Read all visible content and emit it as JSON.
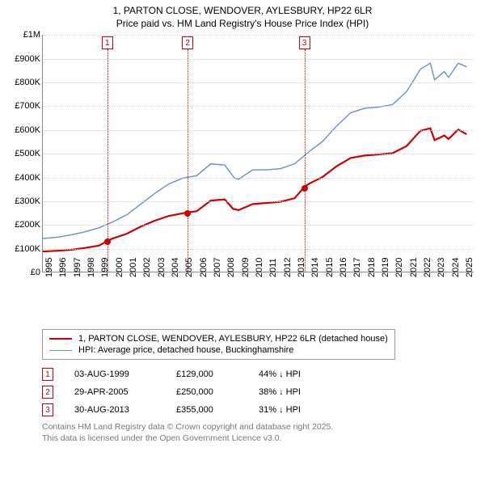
{
  "title_line1": "1, PARTON CLOSE, WENDOVER, AYLESBURY, HP22 6LR",
  "title_line2": "Price paid vs. HM Land Registry's House Price Index (HPI)",
  "colors": {
    "series_paid": "#cc0000",
    "series_hpi": "#6a8fc5",
    "marker_border": "#cc0000",
    "grid": "#d0d0d0",
    "axis": "#888888",
    "text": "#000000",
    "footer": "#777777",
    "bg": "#ffffff"
  },
  "chart": {
    "type": "line",
    "ylim": [
      0,
      1000000
    ],
    "ytick_step": 100000,
    "ylabels": [
      "£0",
      "£100K",
      "£200K",
      "£300K",
      "£400K",
      "£500K",
      "£600K",
      "£700K",
      "£800K",
      "£900K",
      "£1M"
    ],
    "xlim": [
      1995,
      2025.8
    ],
    "xticks": [
      1995,
      1996,
      1997,
      1998,
      1999,
      2000,
      2001,
      2002,
      2003,
      2004,
      2005,
      2006,
      2007,
      2008,
      2009,
      2010,
      2011,
      2012,
      2013,
      2014,
      2015,
      2016,
      2017,
      2018,
      2019,
      2020,
      2021,
      2022,
      2023,
      2024,
      2025
    ],
    "line_width_paid": 2.2,
    "line_width_hpi": 1.4,
    "series_paid": [
      [
        1995,
        85000
      ],
      [
        1996,
        88000
      ],
      [
        1997,
        92000
      ],
      [
        1998,
        100000
      ],
      [
        1999,
        110000
      ],
      [
        1999.6,
        129000
      ],
      [
        2000,
        140000
      ],
      [
        2001,
        160000
      ],
      [
        2002,
        190000
      ],
      [
        2003,
        215000
      ],
      [
        2004,
        235000
      ],
      [
        2005.33,
        250000
      ],
      [
        2006,
        255000
      ],
      [
        2007,
        300000
      ],
      [
        2008,
        305000
      ],
      [
        2008.6,
        265000
      ],
      [
        2009,
        260000
      ],
      [
        2010,
        285000
      ],
      [
        2011,
        290000
      ],
      [
        2012,
        295000
      ],
      [
        2013,
        310000
      ],
      [
        2013.66,
        355000
      ],
      [
        2014,
        370000
      ],
      [
        2015,
        400000
      ],
      [
        2016,
        445000
      ],
      [
        2017,
        480000
      ],
      [
        2018,
        490000
      ],
      [
        2019,
        495000
      ],
      [
        2020,
        500000
      ],
      [
        2021,
        530000
      ],
      [
        2022,
        595000
      ],
      [
        2022.7,
        605000
      ],
      [
        2023,
        555000
      ],
      [
        2023.7,
        575000
      ],
      [
        2024,
        560000
      ],
      [
        2024.7,
        600000
      ],
      [
        2025.3,
        580000
      ]
    ],
    "series_hpi": [
      [
        1995,
        140000
      ],
      [
        1996,
        145000
      ],
      [
        1997,
        155000
      ],
      [
        1998,
        168000
      ],
      [
        1999,
        185000
      ],
      [
        2000,
        210000
      ],
      [
        2001,
        240000
      ],
      [
        2002,
        285000
      ],
      [
        2003,
        330000
      ],
      [
        2004,
        370000
      ],
      [
        2005,
        395000
      ],
      [
        2006,
        405000
      ],
      [
        2007,
        455000
      ],
      [
        2008,
        450000
      ],
      [
        2008.7,
        395000
      ],
      [
        2009,
        390000
      ],
      [
        2010,
        430000
      ],
      [
        2011,
        430000
      ],
      [
        2012,
        435000
      ],
      [
        2013,
        455000
      ],
      [
        2014,
        505000
      ],
      [
        2015,
        550000
      ],
      [
        2016,
        615000
      ],
      [
        2017,
        670000
      ],
      [
        2018,
        690000
      ],
      [
        2019,
        695000
      ],
      [
        2020,
        705000
      ],
      [
        2021,
        760000
      ],
      [
        2022,
        855000
      ],
      [
        2022.7,
        880000
      ],
      [
        2023,
        810000
      ],
      [
        2023.7,
        845000
      ],
      [
        2024,
        820000
      ],
      [
        2024.7,
        880000
      ],
      [
        2025.3,
        865000
      ]
    ],
    "sale_markers": [
      {
        "n": 1,
        "x": 1999.6,
        "y": 129000
      },
      {
        "n": 2,
        "x": 2005.33,
        "y": 250000
      },
      {
        "n": 3,
        "x": 2013.66,
        "y": 355000
      }
    ]
  },
  "legend": {
    "paid": "1, PARTON CLOSE, WENDOVER, AYLESBURY, HP22 6LR (detached house)",
    "hpi": "HPI: Average price, detached house, Buckinghamshire"
  },
  "sales": [
    {
      "n": "1",
      "date": "03-AUG-1999",
      "price": "£129,000",
      "delta": "44% ↓ HPI"
    },
    {
      "n": "2",
      "date": "29-APR-2005",
      "price": "£250,000",
      "delta": "38% ↓ HPI"
    },
    {
      "n": "3",
      "date": "30-AUG-2013",
      "price": "£355,000",
      "delta": "31% ↓ HPI"
    }
  ],
  "footer_line1": "Contains HM Land Registry data © Crown copyright and database right 2025.",
  "footer_line2": "This data is licensed under the Open Government Licence v3.0."
}
